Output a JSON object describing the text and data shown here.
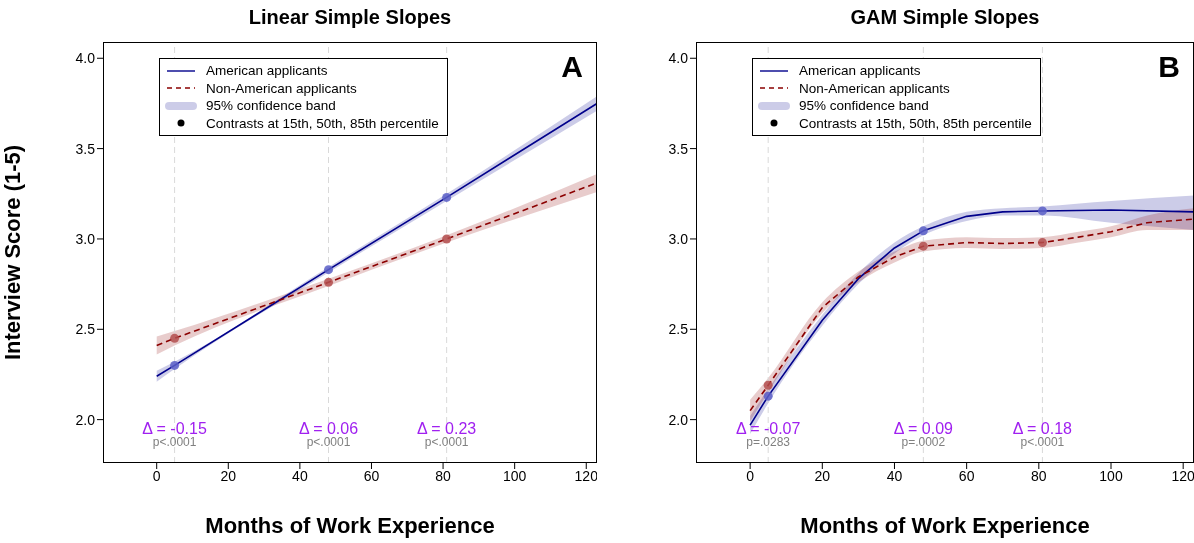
{
  "chart_data": [
    {
      "type": "line",
      "title": "Linear Simple Slopes",
      "xlabel": "Months of Work Experience",
      "ylabel": "Interview Score (1-5)",
      "xlim": [
        -15,
        123
      ],
      "ylim": [
        1.76,
        4.09
      ],
      "xticks": [
        0,
        20,
        40,
        60,
        80,
        100,
        120
      ],
      "yticks": [
        {
          "value": 2,
          "label": "2.0"
        },
        {
          "value": 2.5,
          "label": "2.5"
        },
        {
          "value": 3,
          "label": "3.0"
        },
        {
          "value": 3.5,
          "label": "3.5"
        },
        {
          "value": 4,
          "label": "4.0"
        }
      ],
      "legend": "top left",
      "series": [
        {
          "name": "American applicants",
          "color": "#00008b",
          "line_style": "solid",
          "x": [
            0,
            5,
            48,
            81,
            123
          ],
          "values": [
            2.24,
            2.3,
            2.83,
            3.23,
            3.75
          ],
          "lower": [
            2.21,
            2.28,
            2.815,
            3.21,
            3.71
          ],
          "upper": [
            2.27,
            2.32,
            2.845,
            3.25,
            3.79
          ]
        },
        {
          "name": "Non-American applicants",
          "color": "#8b0000",
          "line_style": "dashed",
          "x": [
            0,
            5,
            48,
            81,
            123
          ],
          "values": [
            2.41,
            2.45,
            2.76,
            3.0,
            3.31
          ],
          "lower": [
            2.36,
            2.41,
            2.74,
            2.98,
            3.26
          ],
          "upper": [
            2.46,
            2.49,
            2.78,
            3.02,
            3.36
          ]
        },
        {
          "type": "scatter",
          "colors": [
            "#5b5fc7",
            "#5b5fc7",
            "#5b5fc7",
            "#b34d4d",
            "#b34d4d",
            "#b34d4d"
          ],
          "x": [
            5,
            48,
            81,
            5,
            48,
            81
          ],
          "values": [
            2.3,
            2.83,
            3.23,
            2.45,
            2.76,
            3.0
          ]
        }
      ],
      "ref_lines": [
        {
          "axis": "x",
          "value": 5,
          "label": null,
          "color": "#d9d9d9",
          "line_style": "dashed"
        },
        {
          "axis": "x",
          "value": 48,
          "label": null,
          "color": "#d9d9d9",
          "line_style": "dashed"
        },
        {
          "axis": "x",
          "value": 81,
          "label": null,
          "color": "#d9d9d9",
          "line_style": "dashed"
        }
      ],
      "annotations": [
        "A",
        {
          "text": "Δ = -0.15",
          "x": 5,
          "y": 1.95
        },
        {
          "text": "p<.0001",
          "x": 5,
          "y": 1.88
        },
        {
          "text": "Δ = 0.06",
          "x": 48,
          "y": 1.95
        },
        {
          "text": "p<.0001",
          "x": 48,
          "y": 1.88
        },
        {
          "text": "Δ = 0.23",
          "x": 81,
          "y": 1.95
        },
        {
          "text": "p<.0001",
          "x": 81,
          "y": 1.88
        },
        "95% confidence band",
        "Contrasts at 15th, 50th, 85th percentile"
      ]
    },
    {
      "type": "line",
      "title": "GAM Simple Slopes",
      "xlabel": "Months of Work Experience",
      "xlim": [
        -15,
        123
      ],
      "ylim": [
        1.76,
        4.09
      ],
      "xticks": [
        0,
        20,
        40,
        60,
        80,
        100,
        120
      ],
      "yticks": [
        {
          "value": 2,
          "label": "2.0"
        },
        {
          "value": 2.5,
          "label": "2.5"
        },
        {
          "value": 3,
          "label": "3.0"
        },
        {
          "value": 3.5,
          "label": "3.5"
        },
        {
          "value": 4,
          "label": "4.0"
        }
      ],
      "legend": "top left",
      "series": [
        {
          "name": "American applicants",
          "color": "#00008b",
          "line_style": "solid",
          "x": [
            0,
            5,
            20,
            30,
            40,
            48,
            60,
            70,
            81,
            100,
            123
          ],
          "values": [
            1.97,
            2.13,
            2.55,
            2.78,
            2.95,
            3.045,
            3.125,
            3.15,
            3.155,
            3.16,
            3.15
          ],
          "lower": [
            1.92,
            2.09,
            2.52,
            2.75,
            2.92,
            3.02,
            3.1,
            3.13,
            3.13,
            3.09,
            3.05
          ],
          "upper": [
            2.02,
            2.17,
            2.58,
            2.81,
            2.98,
            3.07,
            3.15,
            3.17,
            3.18,
            3.21,
            3.24
          ]
        },
        {
          "name": "Non-American applicants",
          "color": "#8b0000",
          "line_style": "dashed",
          "x": [
            0,
            5,
            20,
            30,
            40,
            48,
            60,
            70,
            81,
            91,
            100,
            110,
            123
          ],
          "values": [
            2.05,
            2.19,
            2.62,
            2.79,
            2.9,
            2.96,
            2.98,
            2.975,
            2.98,
            3.01,
            3.04,
            3.09,
            3.11
          ],
          "lower": [
            1.99,
            2.15,
            2.59,
            2.76,
            2.87,
            2.93,
            2.95,
            2.945,
            2.95,
            2.98,
            3.01,
            3.05,
            3.05
          ],
          "upper": [
            2.11,
            2.23,
            2.65,
            2.82,
            2.93,
            2.99,
            3.01,
            3.005,
            3.01,
            3.04,
            3.07,
            3.13,
            3.17
          ]
        },
        {
          "type": "scatter",
          "colors": [
            "#5b5fc7",
            "#5b5fc7",
            "#5b5fc7",
            "#b34d4d",
            "#b34d4d",
            "#b34d4d"
          ],
          "x": [
            5,
            48,
            81,
            5,
            48,
            81
          ],
          "values": [
            2.13,
            3.045,
            3.155,
            2.19,
            2.96,
            2.98
          ]
        }
      ],
      "ref_lines": [
        {
          "axis": "x",
          "value": 5,
          "label": null,
          "color": "#d9d9d9",
          "line_style": "dashed"
        },
        {
          "axis": "x",
          "value": 48,
          "label": null,
          "color": "#d9d9d9",
          "line_style": "dashed"
        },
        {
          "axis": "x",
          "value": 81,
          "label": null,
          "color": "#d9d9d9",
          "line_style": "dashed"
        }
      ],
      "annotations": [
        "B",
        {
          "text": "Δ = -0.07",
          "x": 5,
          "y": 1.95
        },
        {
          "text": "p=.0283",
          "x": 5,
          "y": 1.88
        },
        {
          "text": "Δ = 0.09",
          "x": 48,
          "y": 1.95
        },
        {
          "text": "p=.0002",
          "x": 48,
          "y": 1.88
        },
        {
          "text": "Δ = 0.18",
          "x": 81,
          "y": 1.95
        },
        {
          "text": "p<.0001",
          "x": 81,
          "y": 1.88
        },
        "95% confidence band",
        "Contrasts at 15th, 50th, 85th percentile"
      ]
    }
  ]
}
